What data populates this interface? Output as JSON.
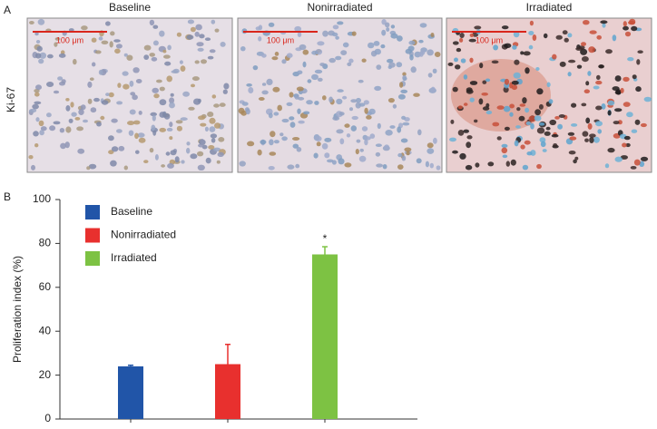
{
  "figure": {
    "panel_a_label": "A",
    "panel_b_label": "B",
    "row_label": "Ki-67",
    "images": [
      {
        "title": "Baseline",
        "scale_bar": "100 μm"
      },
      {
        "title": "Nonirradiated",
        "scale_bar": "100 μm"
      },
      {
        "title": "Irradiated",
        "scale_bar": "100 μm"
      }
    ]
  },
  "chart_data": {
    "type": "bar",
    "y_label": "Proliferation index (%)",
    "series": [
      {
        "name": "Baseline",
        "color": "#2155a8",
        "values": [
          24
        ],
        "errors": [
          0.5
        ]
      },
      {
        "name": "Nonirradiated",
        "color": "#e8302e",
        "values": [
          25
        ],
        "errors": [
          9
        ]
      },
      {
        "name": "Irradiated",
        "color": "#7dc243",
        "values": [
          75
        ],
        "errors": [
          3.5
        ]
      }
    ],
    "annotation": "*",
    "ylim": [
      0,
      100
    ],
    "yticks": [
      0,
      20,
      40,
      60,
      80,
      100
    ],
    "grid": false,
    "legend": "upper left"
  }
}
